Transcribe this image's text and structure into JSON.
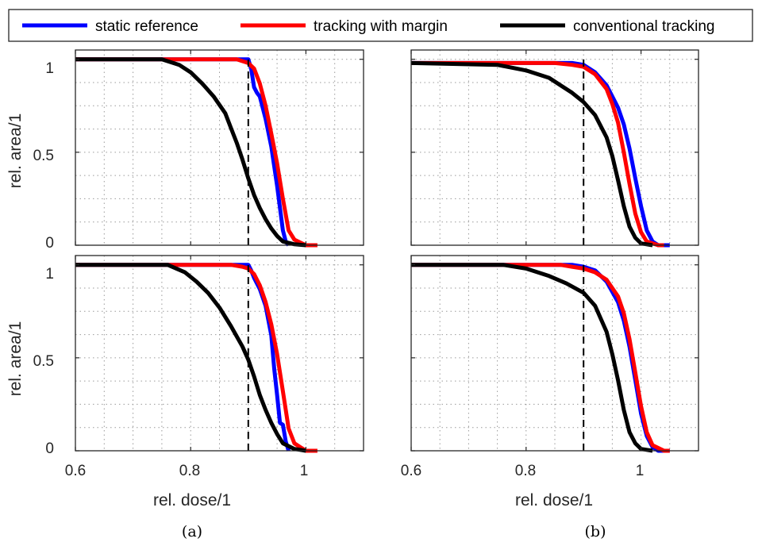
{
  "legend": [
    {
      "label": "static reference",
      "color": "#0000ff"
    },
    {
      "label": "tracking with margin",
      "color": "#ff0000"
    },
    {
      "label": "conventional tracking",
      "color": "#000000"
    }
  ],
  "captions": {
    "a": "(a)",
    "b": "(b)"
  },
  "axis": {
    "xlabel": "rel. dose/1",
    "ylabel": "rel. area/1",
    "xticks": [
      "0.6",
      "0.8",
      "1"
    ],
    "yticks": [
      "0",
      "0.5",
      "1"
    ]
  },
  "chart_data": [
    {
      "type": "line",
      "panel": "a-top",
      "xlim": [
        0.6,
        1.1
      ],
      "ylim": [
        0,
        1.05
      ],
      "grid": true,
      "reference_x": 0.9,
      "series": [
        {
          "name": "static reference",
          "color": "#0000ff",
          "x": [
            0.6,
            0.9,
            0.905,
            0.91,
            0.915,
            0.92,
            0.93,
            0.94,
            0.95,
            0.96,
            0.965,
            0.97
          ],
          "y": [
            1.0,
            1.0,
            0.95,
            0.85,
            0.82,
            0.8,
            0.68,
            0.53,
            0.32,
            0.08,
            0.02,
            0.0
          ]
        },
        {
          "name": "tracking with margin",
          "color": "#ff0000",
          "x": [
            0.6,
            0.88,
            0.9,
            0.91,
            0.92,
            0.93,
            0.94,
            0.95,
            0.96,
            0.97,
            0.98,
            1.0,
            1.02
          ],
          "y": [
            1.0,
            1.0,
            0.98,
            0.95,
            0.87,
            0.75,
            0.6,
            0.44,
            0.25,
            0.08,
            0.03,
            0.0,
            0.0
          ]
        },
        {
          "name": "conventional tracking",
          "color": "#000000",
          "x": [
            0.6,
            0.75,
            0.78,
            0.8,
            0.82,
            0.84,
            0.86,
            0.87,
            0.88,
            0.89,
            0.9,
            0.91,
            0.92,
            0.93,
            0.94,
            0.95,
            0.96,
            0.98,
            1.0
          ],
          "y": [
            1.0,
            1.0,
            0.97,
            0.93,
            0.87,
            0.8,
            0.71,
            0.63,
            0.55,
            0.46,
            0.36,
            0.27,
            0.2,
            0.14,
            0.09,
            0.05,
            0.02,
            0.005,
            0.0
          ]
        }
      ]
    },
    {
      "type": "line",
      "panel": "b-top",
      "xlim": [
        0.6,
        1.1
      ],
      "ylim": [
        0,
        1.05
      ],
      "grid": true,
      "reference_x": 0.9,
      "series": [
        {
          "name": "static reference",
          "color": "#0000ff",
          "x": [
            0.6,
            0.88,
            0.9,
            0.92,
            0.94,
            0.96,
            0.97,
            0.98,
            0.99,
            1.0,
            1.01,
            1.02,
            1.03,
            1.05
          ],
          "y": [
            0.98,
            0.98,
            0.97,
            0.93,
            0.86,
            0.74,
            0.65,
            0.52,
            0.36,
            0.21,
            0.08,
            0.02,
            0.0,
            0.0
          ]
        },
        {
          "name": "tracking with margin",
          "color": "#ff0000",
          "x": [
            0.6,
            0.85,
            0.88,
            0.9,
            0.92,
            0.94,
            0.95,
            0.96,
            0.97,
            0.98,
            0.99,
            1.0,
            1.01,
            1.03,
            1.04
          ],
          "y": [
            0.98,
            0.98,
            0.97,
            0.96,
            0.92,
            0.84,
            0.76,
            0.66,
            0.5,
            0.33,
            0.17,
            0.07,
            0.02,
            0.0,
            0.0
          ]
        },
        {
          "name": "conventional tracking",
          "color": "#000000",
          "x": [
            0.6,
            0.75,
            0.8,
            0.84,
            0.86,
            0.88,
            0.9,
            0.92,
            0.94,
            0.95,
            0.96,
            0.97,
            0.98,
            0.99,
            1.0,
            1.02
          ],
          "y": [
            0.98,
            0.97,
            0.94,
            0.9,
            0.86,
            0.82,
            0.77,
            0.7,
            0.58,
            0.48,
            0.35,
            0.21,
            0.1,
            0.04,
            0.01,
            0.0
          ]
        }
      ]
    },
    {
      "type": "line",
      "panel": "a-bottom",
      "xlim": [
        0.6,
        1.1
      ],
      "ylim": [
        0,
        1.05
      ],
      "grid": true,
      "reference_x": 0.9,
      "series": [
        {
          "name": "static reference",
          "color": "#0000ff",
          "x": [
            0.6,
            0.9,
            0.905,
            0.91,
            0.92,
            0.93,
            0.94,
            0.945,
            0.95,
            0.955,
            0.96,
            0.965,
            0.97
          ],
          "y": [
            1.0,
            1.0,
            0.97,
            0.93,
            0.87,
            0.78,
            0.62,
            0.44,
            0.3,
            0.15,
            0.14,
            0.05,
            0.0
          ]
        },
        {
          "name": "tracking with margin",
          "color": "#ff0000",
          "x": [
            0.6,
            0.87,
            0.89,
            0.9,
            0.91,
            0.92,
            0.93,
            0.94,
            0.95,
            0.96,
            0.97,
            0.98,
            1.0,
            1.02
          ],
          "y": [
            1.0,
            1.0,
            0.99,
            0.98,
            0.95,
            0.89,
            0.8,
            0.68,
            0.52,
            0.32,
            0.12,
            0.04,
            0.0,
            0.0
          ]
        },
        {
          "name": "conventional tracking",
          "color": "#000000",
          "x": [
            0.6,
            0.76,
            0.79,
            0.81,
            0.83,
            0.85,
            0.87,
            0.89,
            0.9,
            0.91,
            0.92,
            0.93,
            0.94,
            0.95,
            0.96,
            0.98,
            1.0
          ],
          "y": [
            1.0,
            1.0,
            0.96,
            0.91,
            0.85,
            0.77,
            0.67,
            0.56,
            0.49,
            0.4,
            0.3,
            0.22,
            0.15,
            0.09,
            0.04,
            0.01,
            0.0
          ]
        }
      ]
    },
    {
      "type": "line",
      "panel": "b-bottom",
      "xlim": [
        0.6,
        1.1
      ],
      "ylim": [
        0,
        1.05
      ],
      "grid": true,
      "reference_x": 0.9,
      "series": [
        {
          "name": "static reference",
          "color": "#0000ff",
          "x": [
            0.6,
            0.88,
            0.9,
            0.92,
            0.94,
            0.96,
            0.97,
            0.98,
            0.99,
            1.0,
            1.01,
            1.02,
            1.03,
            1.05
          ],
          "y": [
            1.0,
            1.0,
            0.99,
            0.97,
            0.91,
            0.8,
            0.7,
            0.56,
            0.38,
            0.2,
            0.08,
            0.02,
            0.0,
            0.0
          ]
        },
        {
          "name": "tracking with margin",
          "color": "#ff0000",
          "x": [
            0.6,
            0.86,
            0.88,
            0.9,
            0.92,
            0.94,
            0.96,
            0.97,
            0.98,
            0.99,
            1.0,
            1.01,
            1.02,
            1.04,
            1.05
          ],
          "y": [
            1.0,
            1.0,
            0.99,
            0.98,
            0.96,
            0.92,
            0.83,
            0.74,
            0.6,
            0.42,
            0.24,
            0.1,
            0.03,
            0.0,
            0.0
          ]
        },
        {
          "name": "conventional tracking",
          "color": "#000000",
          "x": [
            0.6,
            0.76,
            0.8,
            0.84,
            0.87,
            0.9,
            0.92,
            0.94,
            0.95,
            0.96,
            0.97,
            0.98,
            0.99,
            1.0,
            1.02
          ],
          "y": [
            1.0,
            1.0,
            0.98,
            0.94,
            0.9,
            0.85,
            0.78,
            0.64,
            0.52,
            0.38,
            0.22,
            0.1,
            0.04,
            0.01,
            0.0
          ]
        }
      ]
    }
  ]
}
